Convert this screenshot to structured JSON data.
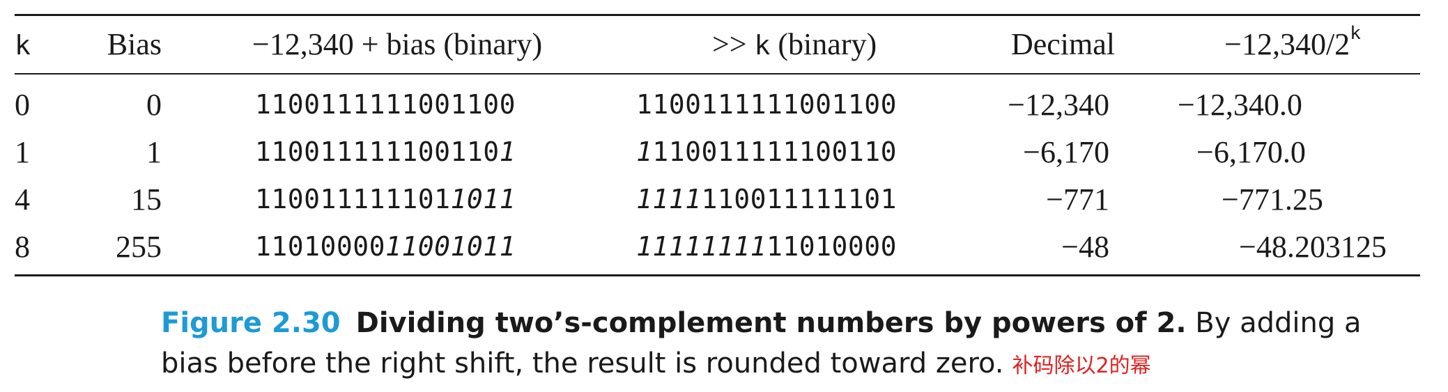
{
  "table": {
    "headers": {
      "k": "k",
      "bias": "Bias",
      "sum_binary": "−12,340 + bias (binary)",
      "shift_op": ">>",
      "shift_k": "k",
      "shift_suffix": "(binary)",
      "decimal": "Decimal",
      "quotient_base": "−12,340/2",
      "quotient_exp": "k"
    },
    "rows": [
      {
        "k": "0",
        "bias": "0",
        "sum_plain": "1100111111001100",
        "sum_italic": "",
        "shift_italic": "",
        "shift_plain": "1100111111001100",
        "decimal": "−12,340",
        "quotient": "−12,340.0"
      },
      {
        "k": "1",
        "bias": "1",
        "sum_plain": "110011111100110",
        "sum_italic": "1",
        "shift_italic": "1",
        "shift_plain": "110011111100110",
        "decimal": "−6,170",
        "quotient": "−6,170.0"
      },
      {
        "k": "4",
        "bias": "15",
        "sum_plain": "110011111101",
        "sum_italic": "1011",
        "shift_italic": "1111",
        "shift_plain": "110011111101",
        "decimal": "−771",
        "quotient": "−771.25"
      },
      {
        "k": "8",
        "bias": "255",
        "sum_plain": "11010000",
        "sum_italic": "11001011",
        "shift_italic": "11111111",
        "shift_plain": "11010000",
        "decimal": "−48",
        "quotient": "−48.203125"
      }
    ]
  },
  "caption": {
    "label": "Figure 2.30",
    "title": "Dividing two’s-complement numbers by powers of 2.",
    "body": "By adding a bias before the right shift, the result is rounded toward zero.",
    "annotation": "补码除以2的幂"
  }
}
